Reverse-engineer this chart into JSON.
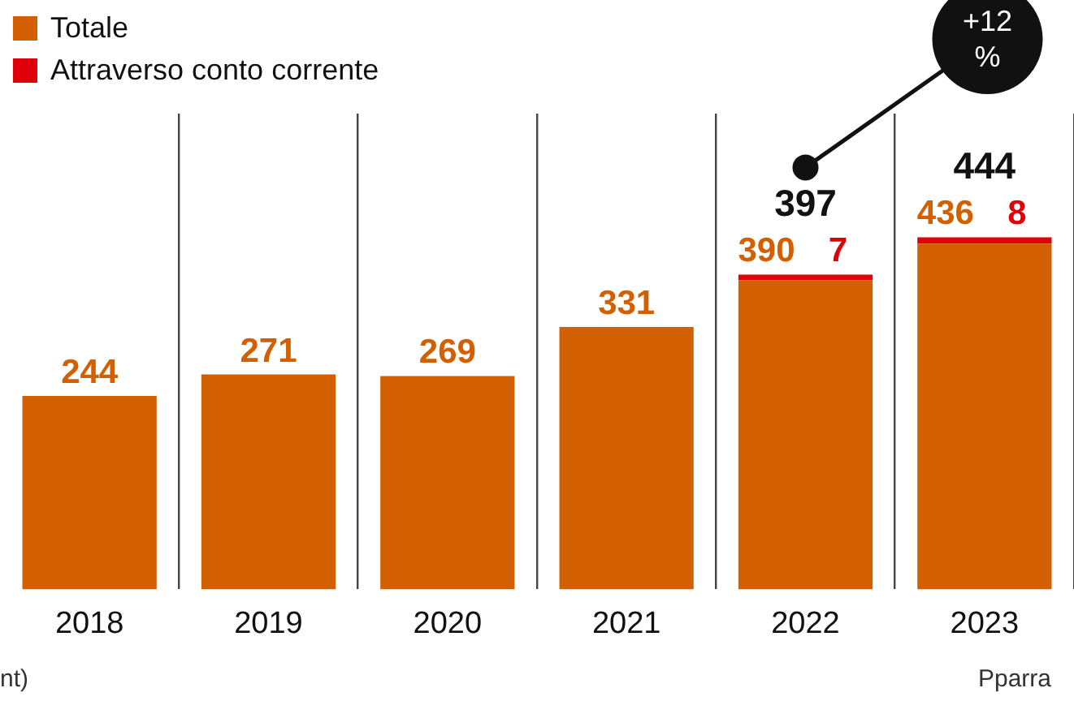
{
  "chart_data": {
    "type": "bar",
    "stacked": true,
    "categories": [
      "2018",
      "2019",
      "2020",
      "2021",
      "2022",
      "2023"
    ],
    "series": [
      {
        "name": "Totale",
        "color": "#d25f00",
        "values": [
          244,
          271,
          269,
          331,
          390,
          436
        ]
      },
      {
        "name": "Attraverso conto corrente",
        "color": "#e0000b",
        "values": [
          null,
          null,
          null,
          null,
          7,
          8
        ]
      }
    ],
    "ylim": [
      0,
      600
    ],
    "tick_labels": "x",
    "grid": "x",
    "legend": "top left",
    "data_labels": true,
    "totals": [
      null,
      null,
      null,
      null,
      "397",
      "444"
    ],
    "annotations": [
      "+12 %",
      "nt)",
      "Pparra"
    ]
  }
}
